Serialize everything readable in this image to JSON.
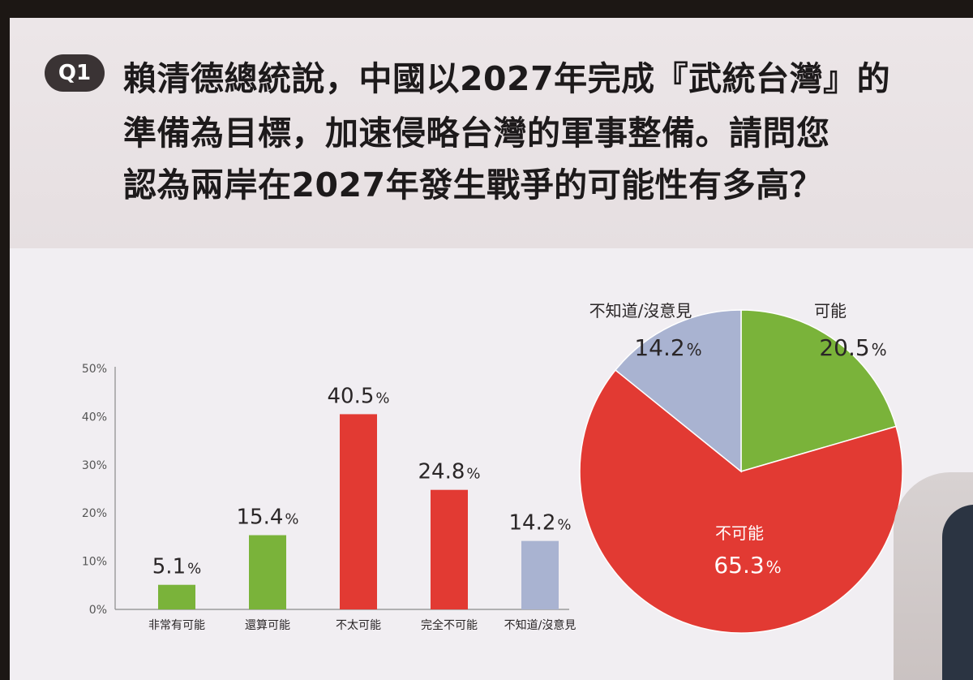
{
  "question": {
    "badge": "Q1",
    "lines": [
      "賴清德總統說，中國以2027年完成『武統台灣』的",
      "準備為目標，加速侵略台灣的軍事整備。請問您",
      "認為兩岸在2027年發生戰爭的可能性有多高？"
    ]
  },
  "chart_data": [
    {
      "type": "bar",
      "categories": [
        "非常有可能",
        "還算可能",
        "不太可能",
        "完全不可能",
        "不知道/沒意見"
      ],
      "values": [
        5.1,
        15.4,
        40.5,
        24.8,
        14.2
      ],
      "value_labels": [
        "5.1",
        "15.4",
        "40.5",
        "24.8",
        "14.2"
      ],
      "value_suffix": "%",
      "colors": [
        "#7ab33a",
        "#7ab33a",
        "#e23a33",
        "#e23a33",
        "#a9b3d1"
      ],
      "ylim": [
        0,
        50
      ],
      "yticks": [
        "0%",
        "10%",
        "20%",
        "30%",
        "40%",
        "50%"
      ],
      "ytick_values": [
        0,
        10,
        20,
        30,
        40,
        50
      ],
      "grid": false
    },
    {
      "type": "pie",
      "labels": [
        "可能",
        "不可能",
        "不知道/沒意見"
      ],
      "values": [
        20.5,
        65.3,
        14.2
      ],
      "value_labels": [
        "20.5",
        "65.3",
        "14.2"
      ],
      "value_suffix": "%",
      "colors": [
        "#7ab33a",
        "#e23a33",
        "#a9b3d1"
      ],
      "start": "12 o'clock",
      "direction": "clockwise"
    }
  ]
}
